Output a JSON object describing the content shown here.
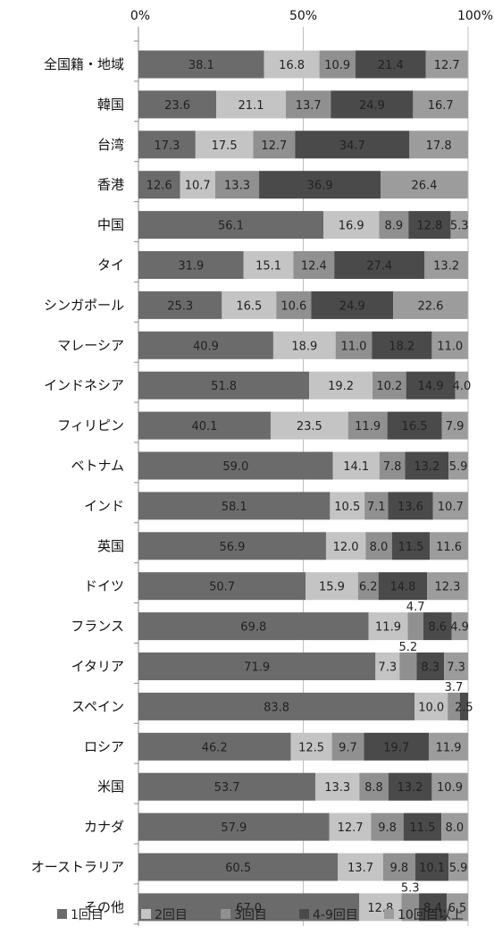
{
  "chart_data": {
    "type": "bar",
    "orientation": "horizontal",
    "stacked": true,
    "title": "",
    "xlabel": "",
    "ylabel": "",
    "xlim": [
      0,
      100
    ],
    "x_ticks": [
      "0%",
      "50%",
      "100%"
    ],
    "grid": true,
    "legend_position": "bottom",
    "categories": [
      "全国籍・地域",
      "韓国",
      "台湾",
      "香港",
      "中国",
      "タイ",
      "シンガポール",
      "マレーシア",
      "インドネシア",
      "フィリピン",
      "ベトナム",
      "インド",
      "英国",
      "ドイツ",
      "フランス",
      "イタリア",
      "スペイン",
      "ロシア",
      "米国",
      "カナダ",
      "オーストラリア",
      "その他"
    ],
    "series": [
      {
        "name": "1回目",
        "color": "#6b6b6b",
        "label_color": "#222222",
        "values": [
          38.1,
          23.6,
          17.3,
          12.6,
          56.1,
          31.9,
          25.3,
          40.9,
          51.8,
          40.1,
          59.0,
          58.1,
          56.9,
          50.7,
          69.8,
          71.9,
          83.8,
          46.2,
          53.7,
          57.9,
          60.5,
          67.0
        ]
      },
      {
        "name": "2回目",
        "color": "#c4c4c4",
        "label_color": "#222222",
        "values": [
          16.8,
          21.1,
          17.5,
          10.7,
          16.9,
          15.1,
          16.5,
          18.9,
          19.2,
          23.5,
          14.1,
          10.5,
          12.0,
          15.9,
          11.9,
          7.3,
          10.0,
          12.5,
          13.3,
          12.7,
          13.7,
          12.8
        ]
      },
      {
        "name": "3回目",
        "color": "#909090",
        "label_color": "#222222",
        "values": [
          10.9,
          13.7,
          12.7,
          13.3,
          8.9,
          12.4,
          10.6,
          11.0,
          10.2,
          11.9,
          7.8,
          7.1,
          8.0,
          6.2,
          4.7,
          5.2,
          3.7,
          9.7,
          8.8,
          9.8,
          9.8,
          5.3
        ]
      },
      {
        "name": "4-9回目",
        "color": "#4a4a4a",
        "label_color": "#222222",
        "values": [
          21.4,
          24.9,
          34.7,
          36.9,
          12.8,
          27.4,
          24.9,
          18.2,
          14.9,
          16.5,
          13.2,
          13.6,
          11.5,
          14.8,
          8.6,
          8.3,
          2.5,
          19.7,
          13.2,
          11.5,
          10.1,
          8.4
        ]
      },
      {
        "name": "10回目以上",
        "color": "#9c9c9c",
        "label_color": "#222222",
        "values": [
          12.7,
          16.7,
          17.8,
          26.4,
          5.3,
          13.2,
          22.6,
          11.0,
          4.0,
          7.9,
          5.9,
          10.7,
          11.6,
          12.3,
          4.9,
          7.3,
          0,
          11.9,
          10.9,
          8.0,
          5.9,
          6.5
        ]
      }
    ]
  }
}
